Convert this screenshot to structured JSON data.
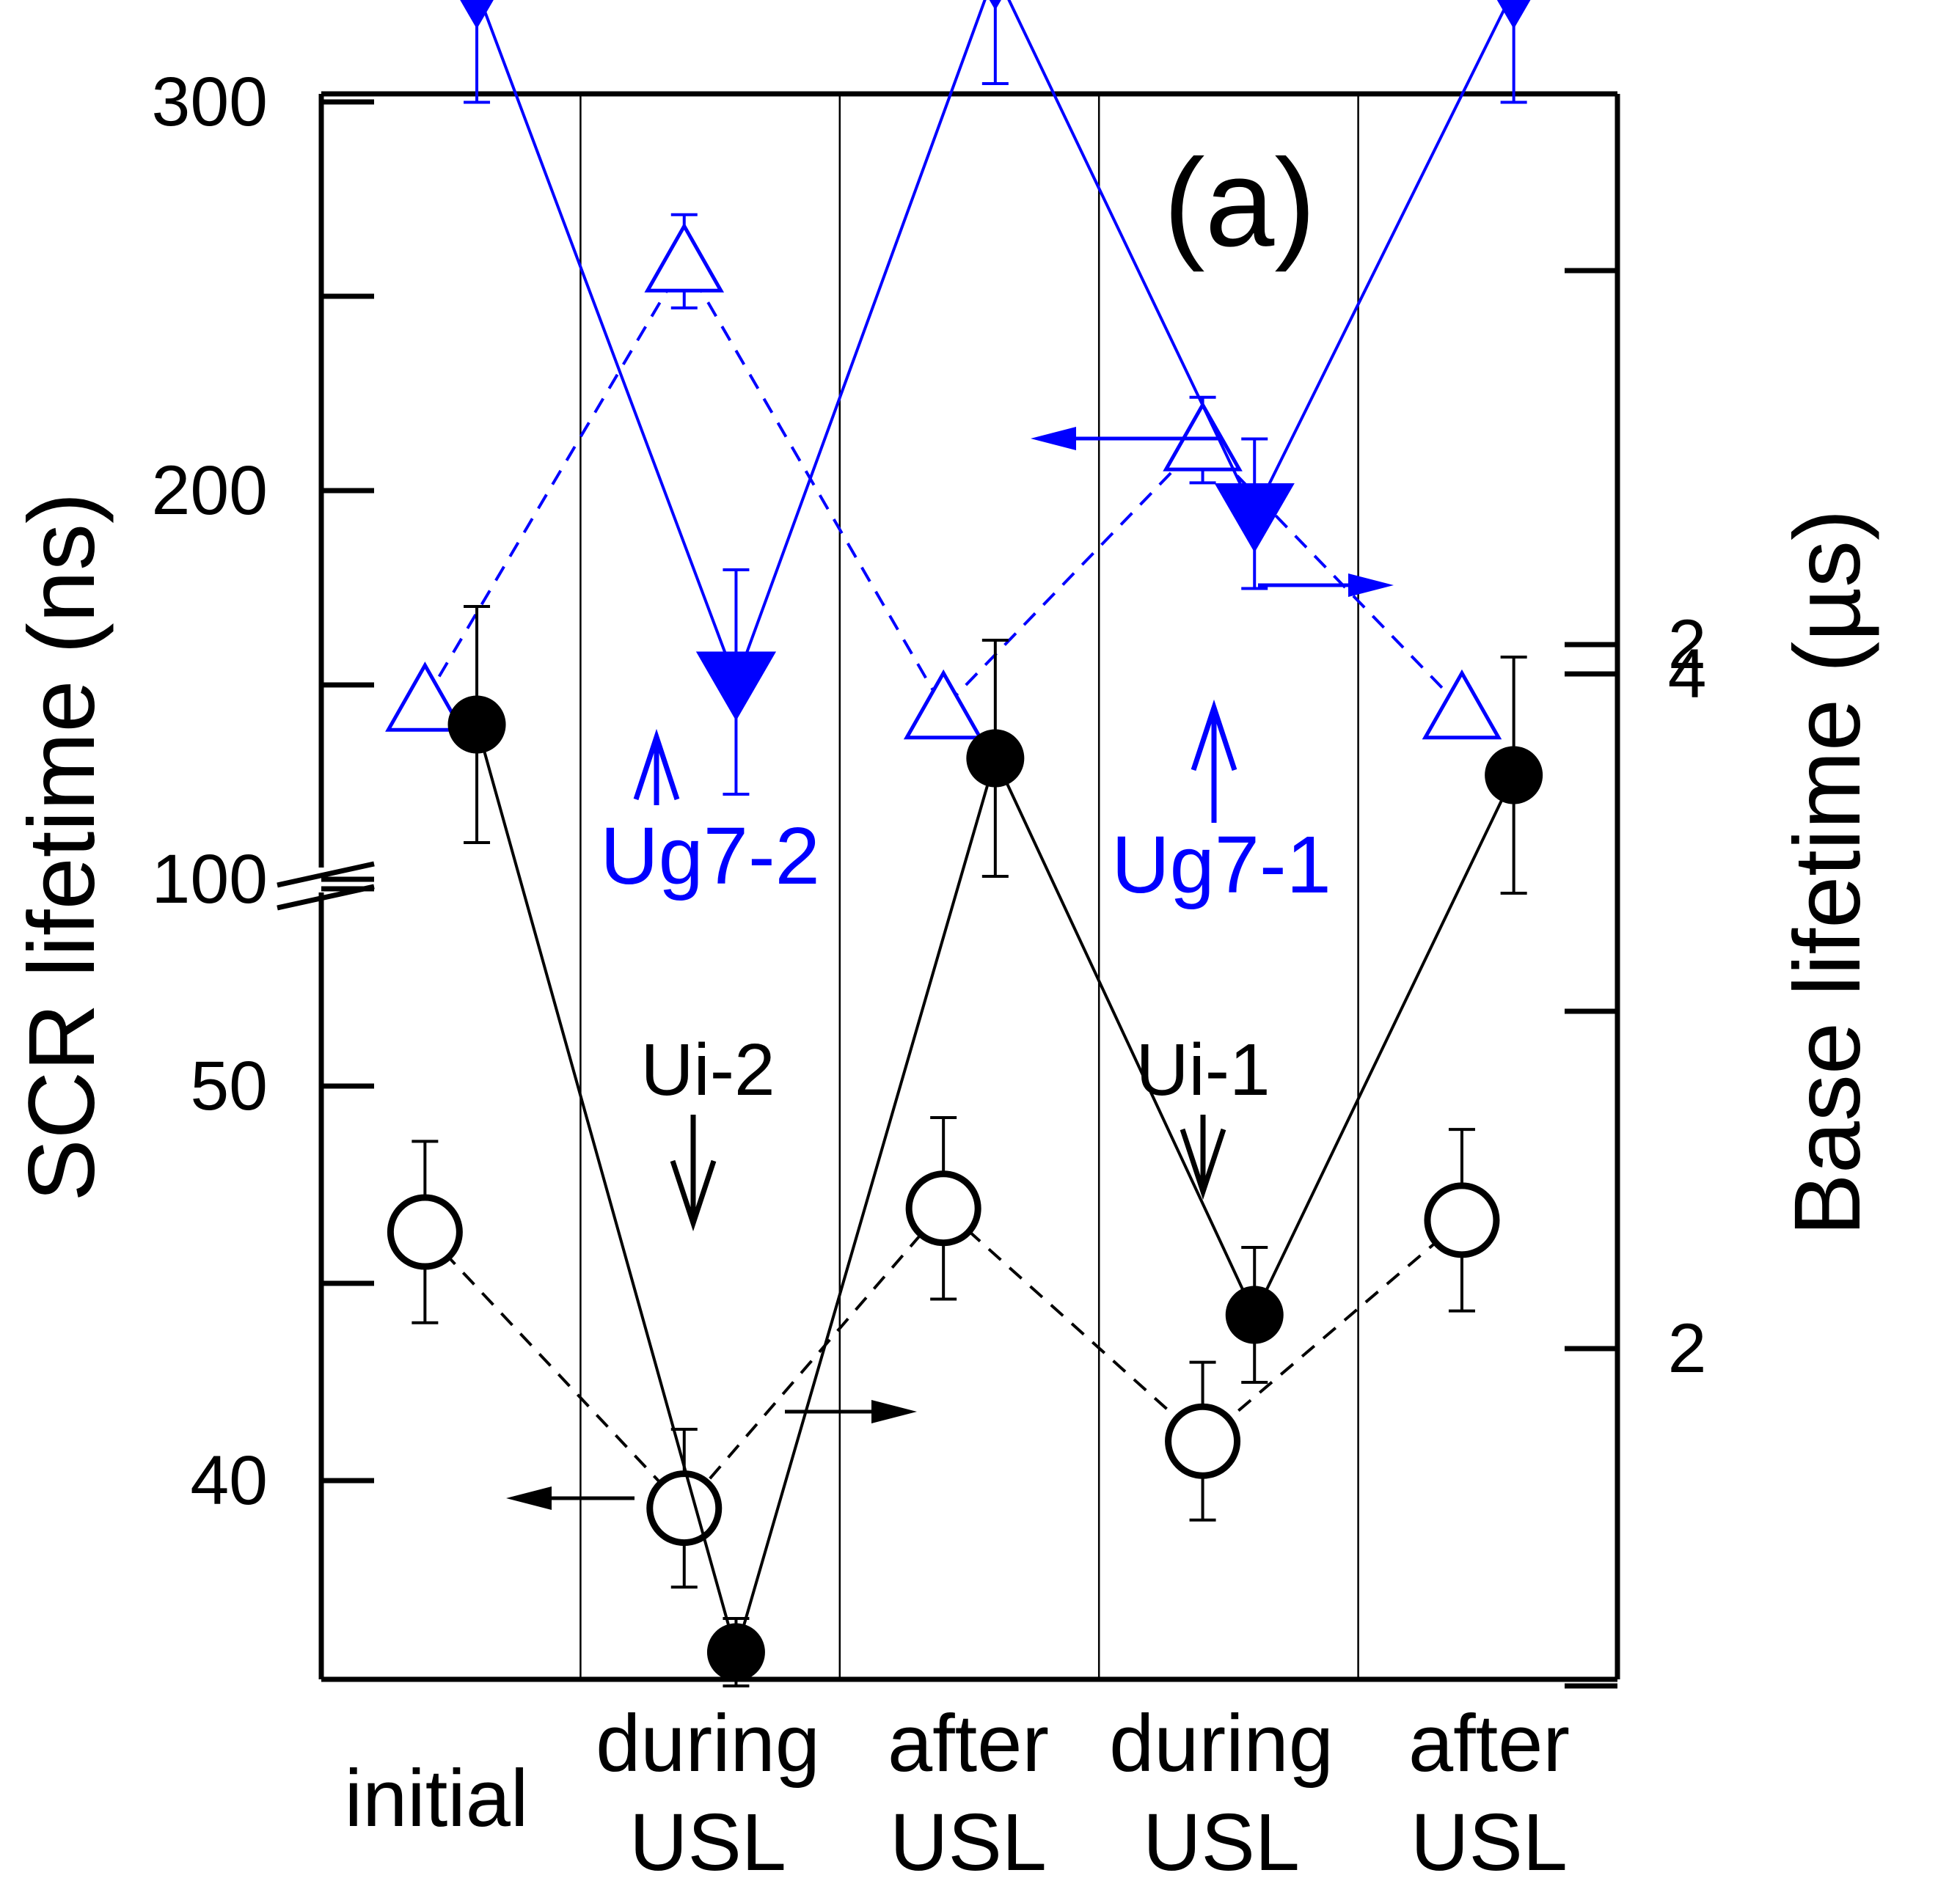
{
  "chart_data": {
    "type": "scatter",
    "panel_label": "(a)",
    "categories": [
      {
        "line1": "initial",
        "line2": ""
      },
      {
        "line1": "during",
        "line2": "USL"
      },
      {
        "line1": "after",
        "line2": "USL"
      },
      {
        "line1": "during",
        "line2": "USL"
      },
      {
        "line1": "after",
        "line2": "USL"
      }
    ],
    "left_axis": {
      "label": "SCR lifetime (ns)",
      "upper_segment": {
        "ylim": [
          100,
          300
        ],
        "ticks": [
          100,
          150,
          200,
          250,
          300
        ],
        "tick_labels": [
          "100",
          "",
          "200",
          "",
          "300"
        ]
      },
      "lower_segment": {
        "ylim": [
          36,
          56
        ],
        "ticks": [
          40,
          45,
          50,
          55
        ],
        "tick_labels": [
          "40",
          "",
          "50",
          ""
        ]
      },
      "axis_break": true
    },
    "right_axis": {
      "label": "Base lifetime (µs)",
      "upper_segment": {
        "ylim": [
          0.6,
          5.4
        ],
        "ticks": [
          2,
          3,
          4,
          5
        ],
        "tick_labels": [
          "2",
          "",
          "4",
          ""
        ]
      },
      "lower_segment": {
        "ylim": [
          0,
          5
        ],
        "ticks": [
          1,
          2,
          3,
          4
        ],
        "tick_labels": [
          "",
          "2",
          "",
          "4"
        ]
      }
    },
    "series": [
      {
        "id": "s-blue-open",
        "segment": "upper",
        "axis": "left",
        "marker": "open-triangle-up",
        "color": "#0000ff",
        "line": "dashed",
        "x": [
          0,
          1,
          2,
          3,
          4
        ],
        "values": [
          146,
          259,
          144,
          213,
          144
        ],
        "err": [
          0,
          12,
          0,
          11,
          0
        ]
      },
      {
        "id": "s-blue-filled",
        "segment": "upper",
        "axis": "right",
        "marker": "filled-triangle-down",
        "color": "#0000ff",
        "line": "solid",
        "x": [
          0.2,
          1.2,
          2.2,
          3.2,
          4.2
        ],
        "values": [
          3.75,
          1.9,
          3.8,
          2.35,
          3.75
        ],
        "err": [
          0.3,
          0.3,
          0.3,
          0.2,
          0.3
        ]
      },
      {
        "id": "s-black-open",
        "segment": "lower",
        "axis": "left",
        "marker": "open-circle",
        "color": "#000000",
        "line": "dashed",
        "x": [
          0,
          1,
          2,
          3,
          4
        ],
        "values": [
          46.3,
          39.3,
          46.9,
          41,
          46.6
        ],
        "err": [
          2.3,
          2,
          2.3,
          2,
          2.3
        ]
      },
      {
        "id": "s-black-filled",
        "segment": "lower",
        "axis": "right",
        "marker": "filled-circle",
        "color": "#000000",
        "line": "solid",
        "x": [
          0.2,
          1.2,
          2.2,
          3.2,
          4.2
        ],
        "values": [
          3.85,
          1.1,
          3.75,
          2.1,
          3.7
        ],
        "err": [
          0.35,
          0.1,
          0.35,
          0.2,
          0.35
        ]
      }
    ],
    "annotations": [
      {
        "id": "ug7-2",
        "text": "Ug7-2",
        "color": "#0000ff",
        "arrow": "up"
      },
      {
        "id": "ug7-1",
        "text": "Ug7-1",
        "color": "#0000ff",
        "arrow": "up"
      },
      {
        "id": "ui-2",
        "text": "Ui-2",
        "color": "#000000",
        "arrow": "down"
      },
      {
        "id": "ui-1",
        "text": "Ui-1",
        "color": "#000000",
        "arrow": "down"
      }
    ],
    "grid": false,
    "legend": "none"
  }
}
